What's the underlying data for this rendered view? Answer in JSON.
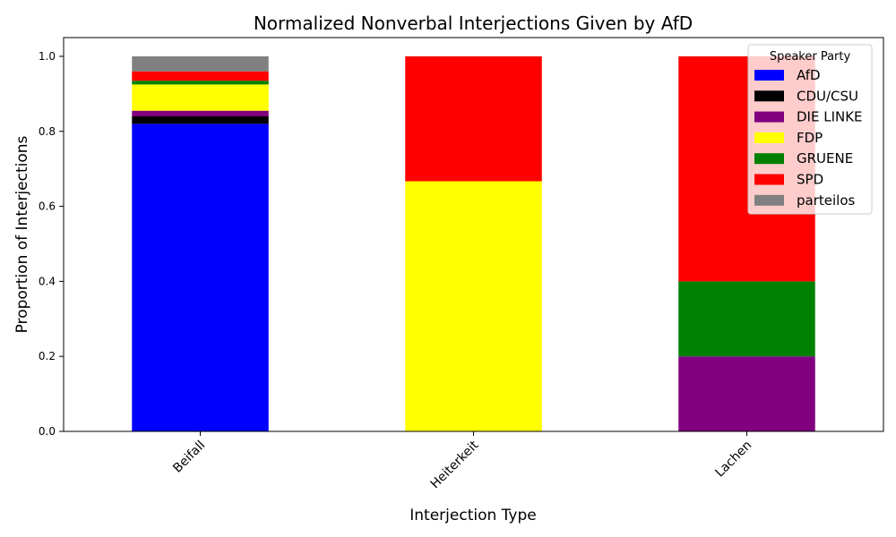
{
  "chart_data": {
    "type": "bar",
    "stacked": true,
    "title": "Normalized Nonverbal Interjections Given by AfD",
    "xlabel": "Interjection Type",
    "ylabel": "Proportion of Interjections",
    "categories": [
      "Beifall",
      "Heiterkeit",
      "Lachen"
    ],
    "ylim": [
      0,
      1.05
    ],
    "yticks": [
      "0.0",
      "0.2",
      "0.4",
      "0.6",
      "0.8",
      "1.0"
    ],
    "ytick_values": [
      0,
      0.2,
      0.4,
      0.6,
      0.8,
      1.0
    ],
    "grid": false,
    "legend": {
      "title": "Speaker Party",
      "placement": "top-right"
    },
    "series": [
      {
        "name": "AfD",
        "color": "#0000ff",
        "values": [
          0.82,
          0,
          0
        ]
      },
      {
        "name": "CDU/CSU",
        "color": "#000000",
        "values": [
          0.02,
          0,
          0
        ]
      },
      {
        "name": "DIE LINKE",
        "color": "#800080",
        "values": [
          0.015,
          0,
          0.2
        ]
      },
      {
        "name": "FDP",
        "color": "#ffff00",
        "values": [
          0.07,
          0.667,
          0
        ]
      },
      {
        "name": "GRUENE",
        "color": "#008000",
        "values": [
          0.01,
          0,
          0.2
        ]
      },
      {
        "name": "SPD",
        "color": "#ff0000",
        "values": [
          0.025,
          0.333,
          0.6
        ]
      },
      {
        "name": "parteilos",
        "color": "#808080",
        "values": [
          0.04,
          0,
          0
        ]
      }
    ]
  }
}
